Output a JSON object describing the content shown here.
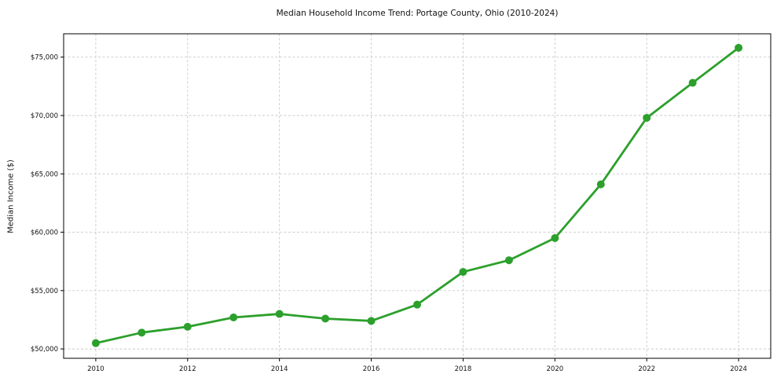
{
  "page": {
    "background": "#ffffff"
  },
  "chart_data": {
    "type": "line",
    "title": "Median Household Income Trend: Portage County, Ohio (2010-2024)",
    "xlabel": "",
    "ylabel": "Median Income ($)",
    "x": [
      2010,
      2011,
      2012,
      2013,
      2014,
      2015,
      2016,
      2017,
      2018,
      2019,
      2020,
      2021,
      2022,
      2023,
      2024
    ],
    "values": [
      50500,
      51400,
      51900,
      52700,
      53000,
      52600,
      52400,
      53800,
      56600,
      57600,
      59500,
      64100,
      69800,
      72800,
      75800
    ],
    "series_name": "Median Household Income",
    "xlim": [
      2009.3,
      2024.7
    ],
    "ylim": [
      49200,
      77000
    ],
    "xticks": {
      "values": [
        2010,
        2012,
        2014,
        2016,
        2018,
        2020,
        2022,
        2024
      ],
      "labels": [
        "2010",
        "2012",
        "2014",
        "2016",
        "2018",
        "2020",
        "2022",
        "2024"
      ]
    },
    "yticks": {
      "values": [
        50000,
        55000,
        60000,
        65000,
        70000,
        75000
      ],
      "labels": [
        "$50,000",
        "$55,000",
        "$60,000",
        "$65,000",
        "$70,000",
        "$75,000"
      ]
    },
    "grid": true,
    "grid_style": "dashed",
    "legend": "none",
    "line_color": "#2ca02c",
    "marker": "circle",
    "marker_color": "#2ca02c",
    "grid_color": "#c9c9c9",
    "axis_color": "#000000",
    "text_color": "#111111"
  }
}
